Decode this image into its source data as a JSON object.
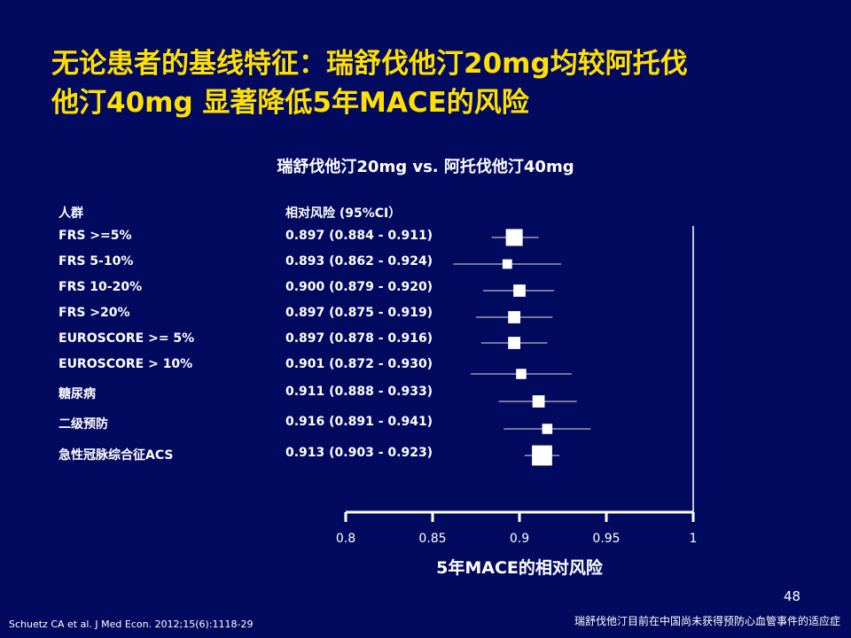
{
  "title_lines": [
    "无论患者的基线特征：瑞舒伐他汀20mg均较阿托伐",
    "他汀40mg 显著降低5年MACE的风险"
  ],
  "subtitle": "瑞舒伐他汀20mg vs. 阿托伐他汀40mg",
  "column_headers": {
    "population": "人群",
    "risk": "相对风险 (95%CI）"
  },
  "rows": [
    {
      "label": "FRS >=5%",
      "value_text": "0.897 (0.884 - 0.911)"
    },
    {
      "label": "FRS 5-10%",
      "value_text": "0.893 (0.862 - 0.924)"
    },
    {
      "label": "FRS 10-20%",
      "value_text": "0.900 (0.879 - 0.920)"
    },
    {
      "label": "FRS >20%",
      "value_text": "0.897 (0.875 - 0.919)"
    },
    {
      "label": "EUROSCORE >= 5%",
      "value_text": "0.897 (0.878 - 0.916)"
    },
    {
      "label": "EUROSCORE > 10%",
      "value_text": "0.901 (0.872 - 0.930)"
    },
    {
      "label": "糖尿病",
      "value_text": "0.911 (0.888 - 0.933)"
    },
    {
      "label": "二级预防",
      "value_text": "0.916 (0.891 - 0.941)"
    },
    {
      "label": "急性冠脉综合征ACS",
      "value_text": "0.913 (0.903 - 0.923)"
    }
  ],
  "chart_data": {
    "type": "scatter",
    "subtype": "forest-plot",
    "title": "瑞舒伐他汀20mg vs. 阿托伐他汀40mg",
    "xlabel": "5年MACE的相对风险",
    "xlim": [
      0.8,
      1.0
    ],
    "xticks": [
      0.8,
      0.85,
      0.9,
      0.95,
      1.0
    ],
    "xtick_labels": [
      "0.8",
      "0.85",
      "0.9",
      "0.95",
      "1"
    ],
    "reference_line": 1.0,
    "grid": false,
    "categories": [
      "FRS >=5%",
      "FRS 5-10%",
      "FRS 10-20%",
      "FRS >20%",
      "EUROSCORE >= 5%",
      "EUROSCORE > 10%",
      "糖尿病",
      "二级预防",
      "急性冠脉综合征ACS"
    ],
    "estimate": [
      0.897,
      0.893,
      0.9,
      0.897,
      0.897,
      0.901,
      0.911,
      0.916,
      0.913
    ],
    "ci_low": [
      0.884,
      0.862,
      0.879,
      0.875,
      0.878,
      0.872,
      0.888,
      0.891,
      0.903
    ],
    "ci_high": [
      0.911,
      0.924,
      0.92,
      0.919,
      0.916,
      0.93,
      0.933,
      0.941,
      0.923
    ],
    "marker_weight": [
      1.0,
      0.45,
      0.65,
      0.65,
      0.65,
      0.5,
      0.65,
      0.5,
      1.25
    ]
  },
  "page_number": "48",
  "citation": "Schuetz CA  et al. J Med Econ. 2012;15(6):1118-29",
  "footnote": "瑞舒伐他汀目前在中国尚未获得预防心血管事件的适应症",
  "colors": {
    "background": "#010a5e",
    "title": "#ffe000",
    "text": "#ffffff",
    "ci_line": "#9a9ab0"
  }
}
